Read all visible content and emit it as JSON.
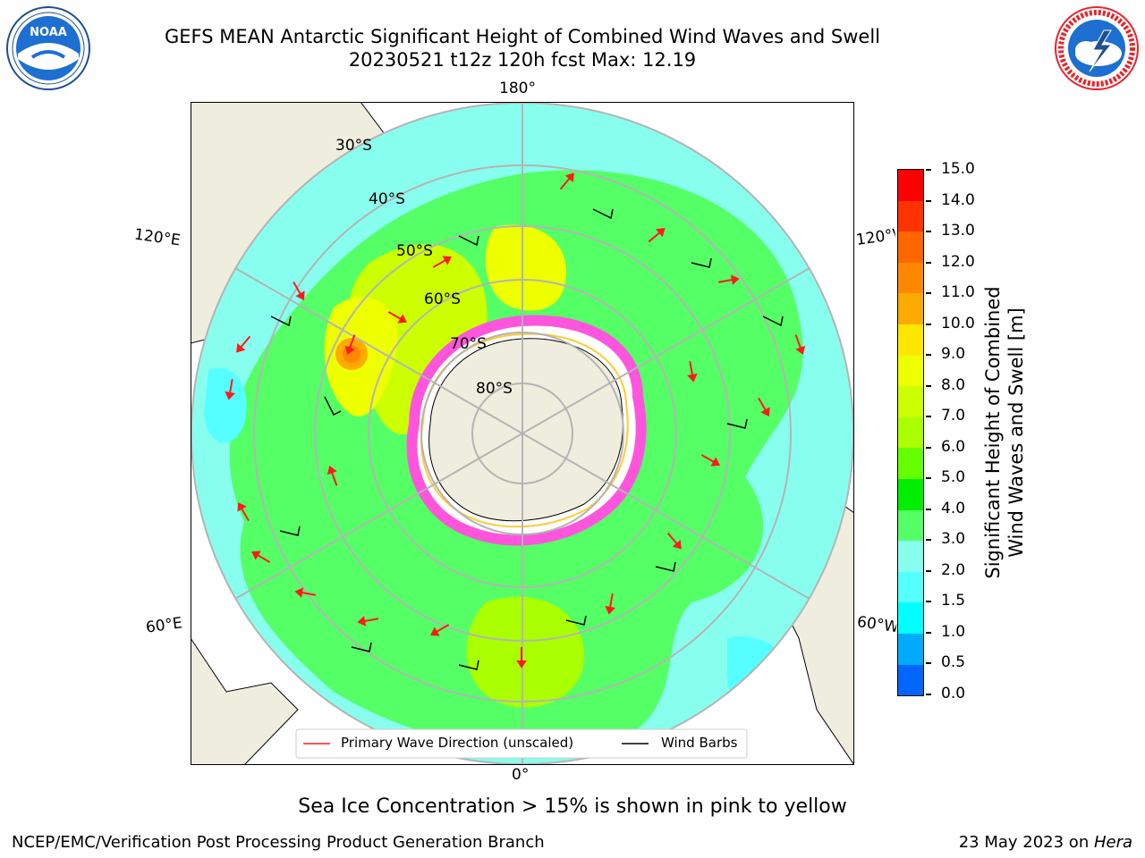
{
  "header": {
    "title_line1": "GEFS MEAN Antarctic Significant Height of Combined Wind Waves and Swell",
    "title_line2": "20230521 t12z 120h fcst   Max: 12.19"
  },
  "logos": {
    "noaa_text": "NOAA",
    "noaa_ring_text": "NATIONAL OCEANIC AND ATMOSPHERIC ADMINISTRATION · U.S. DEPARTMENT OF COMMERCE",
    "nws_ring_text": "NATIONAL WEATHER SERVICE"
  },
  "map": {
    "projection": "south-polar-stereographic",
    "lon_labels": {
      "top": "180°",
      "bottom": "0°",
      "upper_left": "120°E",
      "upper_right": "120°W",
      "lower_left": "60°E",
      "lower_right": "60°W"
    },
    "lat_labels": [
      "30°S",
      "40°S",
      "50°S",
      "60°S",
      "70°S",
      "80°S"
    ],
    "colors": {
      "land": "#efedde",
      "ice": "#ff55dd",
      "ice_edge": "#ffcc33",
      "grid": "#b4b4b4",
      "arrow": "#ff1a1a",
      "barb": "#000000"
    }
  },
  "legend": {
    "primary_wave": "Primary Wave Direction (unscaled)",
    "wind_barbs": "Wind Barbs"
  },
  "colorbar": {
    "label_line1": "Significant Height of Combined",
    "label_line2": "Wind Waves and Swell [m]",
    "ticks": [
      "15.0",
      "14.0",
      "13.0",
      "12.0",
      "11.0",
      "10.0",
      "9.0",
      "8.0",
      "7.0",
      "6.0",
      "5.0",
      "4.0",
      "3.0",
      "2.0",
      "1.5",
      "1.0",
      "0.5",
      "0.0"
    ],
    "colors": [
      "#ff0000",
      "#ff3300",
      "#ff6600",
      "#ff8800",
      "#ffaa00",
      "#ffe600",
      "#eeff00",
      "#ccff00",
      "#aaff00",
      "#66ff00",
      "#00ee00",
      "#55ff66",
      "#88ffee",
      "#55ffff",
      "#00ffff",
      "#00aaff",
      "#0066ff",
      "#0000ff"
    ]
  },
  "caption": "Sea Ice Concentration > 15% is shown in pink to yellow",
  "footer": {
    "left": "NCEP/EMC/Verification Post Processing Product Generation Branch",
    "right_prefix": "23 May 2023 on ",
    "right_italic": "Hera"
  }
}
